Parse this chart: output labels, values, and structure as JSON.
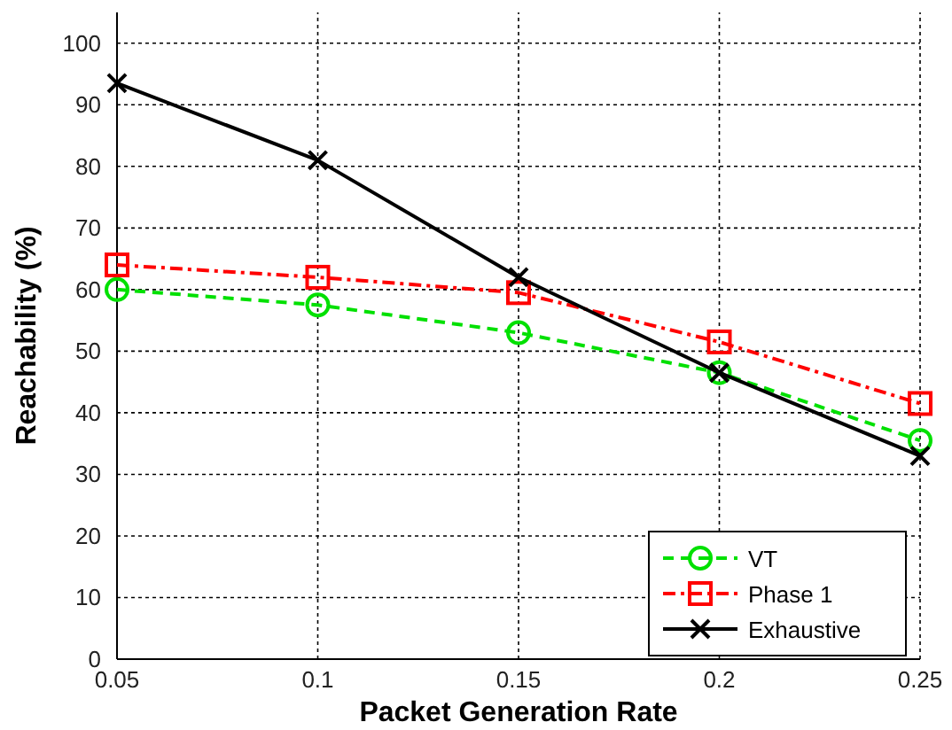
{
  "chart_data": {
    "type": "line",
    "xlabel": "Packet Generation Rate",
    "ylabel": "Reachability (%)",
    "x": [
      0.05,
      0.1,
      0.15,
      0.2,
      0.25
    ],
    "series": [
      {
        "name": "VT",
        "color": "#00e000",
        "values": [
          60,
          57.5,
          53,
          46.5,
          35.5
        ],
        "marker": "circle",
        "line_style": "dashed"
      },
      {
        "name": "Phase 1",
        "color": "#ff0000",
        "values": [
          64,
          62,
          59.5,
          51.5,
          41.5
        ],
        "marker": "square",
        "line_style": "dashdot"
      },
      {
        "name": "Exhaustive",
        "color": "#000000",
        "values": [
          93.5,
          81,
          62,
          46.5,
          33
        ],
        "marker": "cross",
        "line_style": "solid"
      }
    ],
    "xlim": [
      0.05,
      0.25
    ],
    "xticks": [
      0.05,
      0.1,
      0.15,
      0.2,
      0.25
    ],
    "ylim": [
      0,
      105
    ],
    "yticks": [
      0,
      10,
      20,
      30,
      40,
      50,
      60,
      70,
      80,
      90,
      100
    ],
    "grid": true,
    "legend": "bottom right"
  }
}
